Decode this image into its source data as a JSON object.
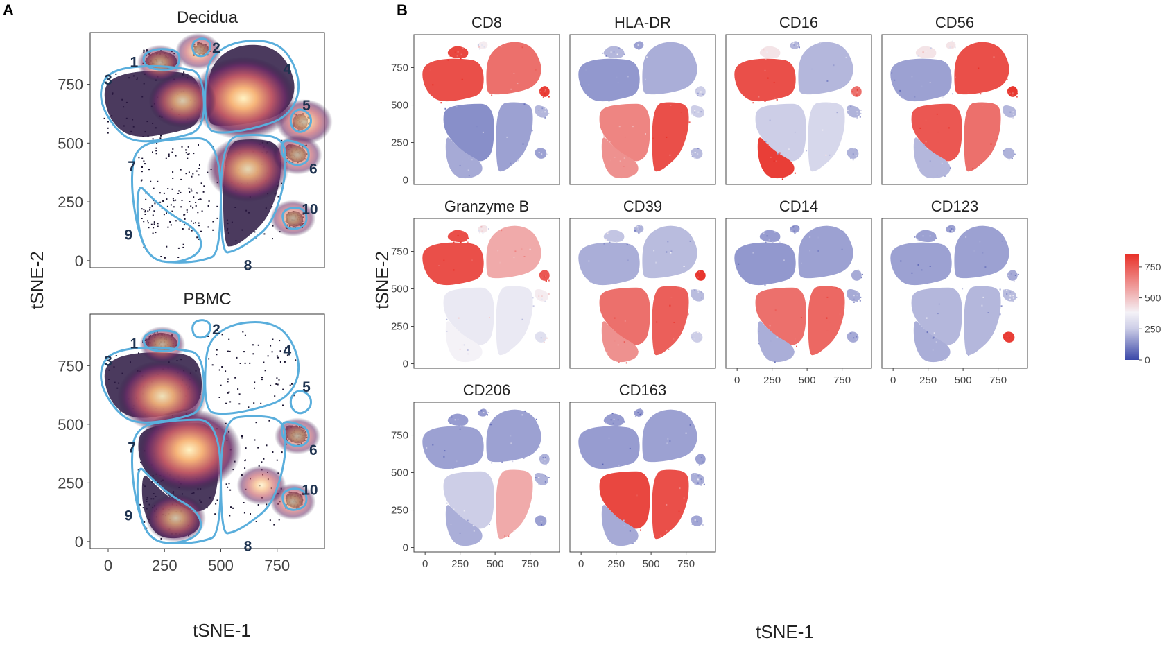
{
  "panels": {
    "a_label": "A",
    "b_label": "B"
  },
  "panel_a": {
    "plots": [
      {
        "title": "Decidua",
        "density_blobs": [
          {
            "cluster": "4",
            "x": 600,
            "y": 690,
            "intensity": 1.0
          },
          {
            "cluster": "3",
            "x": 330,
            "y": 680,
            "intensity": 0.5
          },
          {
            "cluster": "8",
            "x": 620,
            "y": 390,
            "intensity": 0.7
          },
          {
            "cluster": "1",
            "x": 230,
            "y": 840,
            "intensity": 0.2
          },
          {
            "cluster": "2",
            "x": 400,
            "y": 890,
            "intensity": 0.2
          },
          {
            "cluster": "5",
            "x": 870,
            "y": 590,
            "intensity": 0.35
          },
          {
            "cluster": "6",
            "x": 840,
            "y": 450,
            "intensity": 0.25
          },
          {
            "cluster": "10",
            "x": 820,
            "y": 180,
            "intensity": 0.2
          }
        ]
      },
      {
        "title": "PBMC",
        "density_blobs": [
          {
            "cluster": "3",
            "x": 240,
            "y": 620,
            "intensity": 0.8
          },
          {
            "cluster": "7",
            "x": 360,
            "y": 390,
            "intensity": 1.0
          },
          {
            "cluster": "9",
            "x": 300,
            "y": 100,
            "intensity": 0.4
          },
          {
            "cluster": "1",
            "x": 240,
            "y": 840,
            "intensity": 0.2
          },
          {
            "cluster": "6",
            "x": 840,
            "y": 450,
            "intensity": 0.2
          },
          {
            "cluster": "10",
            "x": 820,
            "y": 170,
            "intensity": 0.2
          },
          {
            "cluster": "8",
            "x": 680,
            "y": 240,
            "intensity": 0.25
          }
        ]
      }
    ],
    "cluster_labels": [
      {
        "text": "1",
        "x": 115,
        "y": 845
      },
      {
        "text": "2",
        "x": 480,
        "y": 905
      },
      {
        "text": "3",
        "x": 0,
        "y": 770
      },
      {
        "text": "4",
        "x": 795,
        "y": 815
      },
      {
        "text": "5",
        "x": 880,
        "y": 660
      },
      {
        "text": "6",
        "x": 910,
        "y": 390
      },
      {
        "text": "7",
        "x": 105,
        "y": 400
      },
      {
        "text": "8",
        "x": 620,
        "y": -20
      },
      {
        "text": "9",
        "x": 90,
        "y": 110
      },
      {
        "text": "10",
        "x": 895,
        "y": 220
      }
    ],
    "x_ticks": [
      "0",
      "250",
      "500",
      "750"
    ],
    "y_ticks": [
      "0",
      "250",
      "500",
      "750"
    ],
    "xlabel": "tSNE-1",
    "ylabel": "tSNE-2"
  },
  "panel_b": {
    "x_ticks": [
      "0",
      "250",
      "500",
      "750"
    ],
    "y_ticks": [
      "0",
      "250",
      "500",
      "750"
    ],
    "xlabel": "tSNE-1",
    "ylabel": "tSNE-2"
  },
  "legend": {
    "ticks": [
      "750",
      "500",
      "250",
      "0"
    ],
    "range": [
      0,
      850
    ]
  },
  "colors": {
    "high": "#e8322a",
    "mid": "#f5f3f8",
    "low": "#3a47a8",
    "gate": "#5aaedc",
    "cell": "#1a1430"
  },
  "chart_data": [
    {
      "type": "scatter",
      "title": "Decidua",
      "xlabel": "tSNE-1",
      "ylabel": "tSNE-2",
      "xlim": [
        -80,
        960
      ],
      "ylim": [
        -30,
        970
      ],
      "note": "tSNE density plot with 10 gated clusters"
    },
    {
      "type": "scatter",
      "title": "PBMC",
      "xlabel": "tSNE-1",
      "ylabel": "tSNE-2",
      "xlim": [
        -80,
        960
      ],
      "ylim": [
        -30,
        970
      ],
      "note": "tSNE density plot with 10 gated clusters"
    },
    {
      "type": "scatter",
      "title": "CD8",
      "xlabel": "tSNE-1",
      "ylabel": "tSNE-2",
      "color_range": [
        0,
        850
      ],
      "expression_by_cluster": {
        "1": 800,
        "2": 400,
        "3": 780,
        "4": 700,
        "5": 820,
        "6": 250,
        "7": 160,
        "8": 200,
        "9": 220,
        "10": 200
      }
    },
    {
      "type": "scatter",
      "title": "HLA-DR",
      "xlabel": "tSNE-1",
      "ylabel": "tSNE-2",
      "color_range": [
        0,
        850
      ],
      "expression_by_cluster": {
        "1": 250,
        "2": 200,
        "3": 180,
        "4": 230,
        "5": 300,
        "6": 300,
        "7": 650,
        "8": 780,
        "9": 620,
        "10": 260
      }
    },
    {
      "type": "scatter",
      "title": "CD16",
      "xlabel": "tSNE-1",
      "ylabel": "tSNE-2",
      "color_range": [
        0,
        850
      ],
      "expression_by_cluster": {
        "1": 420,
        "2": 250,
        "3": 780,
        "4": 250,
        "5": 700,
        "6": 240,
        "7": 300,
        "8": 320,
        "9": 820,
        "10": 240
      }
    },
    {
      "type": "scatter",
      "title": "CD56",
      "xlabel": "tSNE-1",
      "ylabel": "tSNE-2",
      "color_range": [
        0,
        850
      ],
      "expression_by_cluster": {
        "1": 420,
        "2": 420,
        "3": 200,
        "4": 780,
        "5": 840,
        "6": 250,
        "7": 760,
        "8": 700,
        "9": 250,
        "10": 240
      }
    },
    {
      "type": "scatter",
      "title": "Granzyme B",
      "xlabel": "tSNE-1",
      "ylabel": "tSNE-2",
      "color_range": [
        0,
        850
      ],
      "expression_by_cluster": {
        "1": 780,
        "2": 420,
        "3": 780,
        "4": 560,
        "5": 760,
        "6": 400,
        "7": 360,
        "8": 360,
        "9": 380,
        "10": 340
      }
    },
    {
      "type": "scatter",
      "title": "CD39",
      "xlabel": "tSNE-1",
      "ylabel": "tSNE-2",
      "color_range": [
        0,
        850
      ],
      "expression_by_cluster": {
        "1": 280,
        "2": 240,
        "3": 230,
        "4": 260,
        "5": 840,
        "6": 260,
        "7": 700,
        "8": 740,
        "9": 620,
        "10": 300
      }
    },
    {
      "type": "scatter",
      "title": "CD14",
      "xlabel": "tSNE-1",
      "ylabel": "tSNE-2",
      "color_range": [
        0,
        850
      ],
      "expression_by_cluster": {
        "1": 190,
        "2": 190,
        "3": 180,
        "4": 200,
        "5": 220,
        "6": 220,
        "7": 700,
        "8": 720,
        "9": 230,
        "10": 220
      }
    },
    {
      "type": "scatter",
      "title": "CD123",
      "xlabel": "tSNE-1",
      "ylabel": "tSNE-2",
      "color_range": [
        0,
        850
      ],
      "expression_by_cluster": {
        "1": 200,
        "2": 200,
        "3": 200,
        "4": 200,
        "5": 220,
        "6": 260,
        "7": 250,
        "8": 250,
        "9": 230,
        "10": 820
      }
    },
    {
      "type": "scatter",
      "title": "CD206",
      "xlabel": "tSNE-1",
      "ylabel": "tSNE-2",
      "color_range": [
        0,
        850
      ],
      "expression_by_cluster": {
        "1": 190,
        "2": 190,
        "3": 200,
        "4": 200,
        "5": 240,
        "6": 240,
        "7": 300,
        "8": 560,
        "9": 230,
        "10": 200
      }
    },
    {
      "type": "scatter",
      "title": "CD163",
      "xlabel": "tSNE-1",
      "ylabel": "tSNE-2",
      "color_range": [
        0,
        850
      ],
      "expression_by_cluster": {
        "1": 190,
        "2": 190,
        "3": 190,
        "4": 200,
        "5": 200,
        "6": 230,
        "7": 800,
        "8": 780,
        "9": 220,
        "10": 210
      }
    }
  ]
}
